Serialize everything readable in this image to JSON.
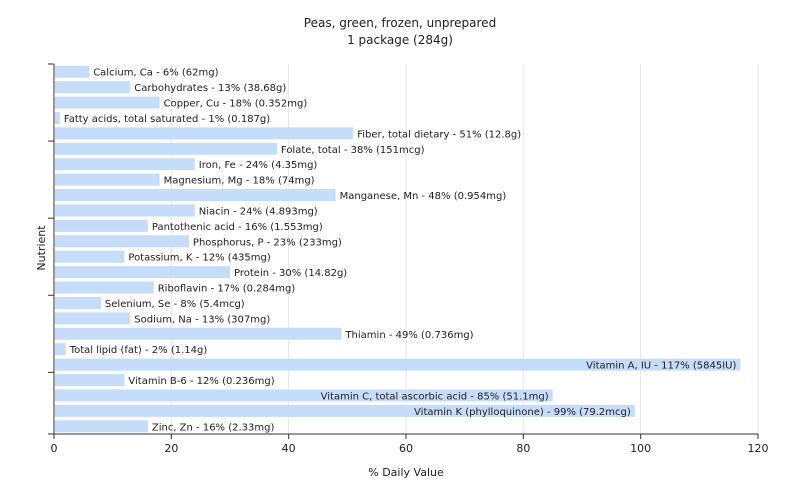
{
  "chart_data": {
    "type": "bar",
    "orientation": "horizontal",
    "title": "Peas, green, frozen, unprepared",
    "subtitle": "1 package (284g)",
    "xlabel": "% Daily Value",
    "ylabel": "Nutrient",
    "xlim": [
      0,
      120
    ],
    "xticks": [
      0,
      20,
      40,
      60,
      80,
      100,
      120
    ],
    "grid": true,
    "colors": {
      "bar": "#c6dcfb",
      "grid": "#e6e6e6",
      "axis": "#333333",
      "text": "#222222"
    },
    "categories": [
      "Calcium, Ca",
      "Carbohydrates",
      "Copper, Cu",
      "Fatty acids, total saturated",
      "Fiber, total dietary",
      "Folate, total",
      "Iron, Fe",
      "Magnesium, Mg",
      "Manganese, Mn",
      "Niacin",
      "Pantothenic acid",
      "Phosphorus, P",
      "Potassium, K",
      "Protein",
      "Riboflavin",
      "Selenium, Se",
      "Sodium, Na",
      "Thiamin",
      "Total lipid (fat)",
      "Vitamin A, IU",
      "Vitamin B-6",
      "Vitamin C, total ascorbic acid",
      "Vitamin K (phylloquinone)",
      "Zinc, Zn"
    ],
    "values": [
      6,
      13,
      18,
      1,
      51,
      38,
      24,
      18,
      48,
      24,
      16,
      23,
      12,
      30,
      17,
      8,
      13,
      49,
      2,
      117,
      12,
      85,
      99,
      16
    ],
    "labels": [
      "Calcium, Ca - 6% (62mg)",
      "Carbohydrates - 13% (38.68g)",
      "Copper, Cu - 18% (0.352mg)",
      "Fatty acids, total saturated - 1% (0.187g)",
      "Fiber, total dietary - 51% (12.8g)",
      "Folate, total - 38% (151mcg)",
      "Iron, Fe - 24% (4.35mg)",
      "Magnesium, Mg - 18% (74mg)",
      "Manganese, Mn - 48% (0.954mg)",
      "Niacin - 24% (4.893mg)",
      "Pantothenic acid - 16% (1.553mg)",
      "Phosphorus, P - 23% (233mg)",
      "Potassium, K - 12% (435mg)",
      "Protein - 30% (14.82g)",
      "Riboflavin - 17% (0.284mg)",
      "Selenium, Se - 8% (5.4mcg)",
      "Sodium, Na - 13% (307mg)",
      "Thiamin - 49% (0.736mg)",
      "Total lipid (fat) - 2% (1.14g)",
      "Vitamin A, IU - 117% (5845IU)",
      "Vitamin B-6 - 12% (0.236mg)",
      "Vitamin C, total ascorbic acid - 85% (51.1mg)",
      "Vitamin K (phylloquinone) - 99% (79.2mcg)",
      "Zinc, Zn - 16% (2.33mg)"
    ]
  }
}
